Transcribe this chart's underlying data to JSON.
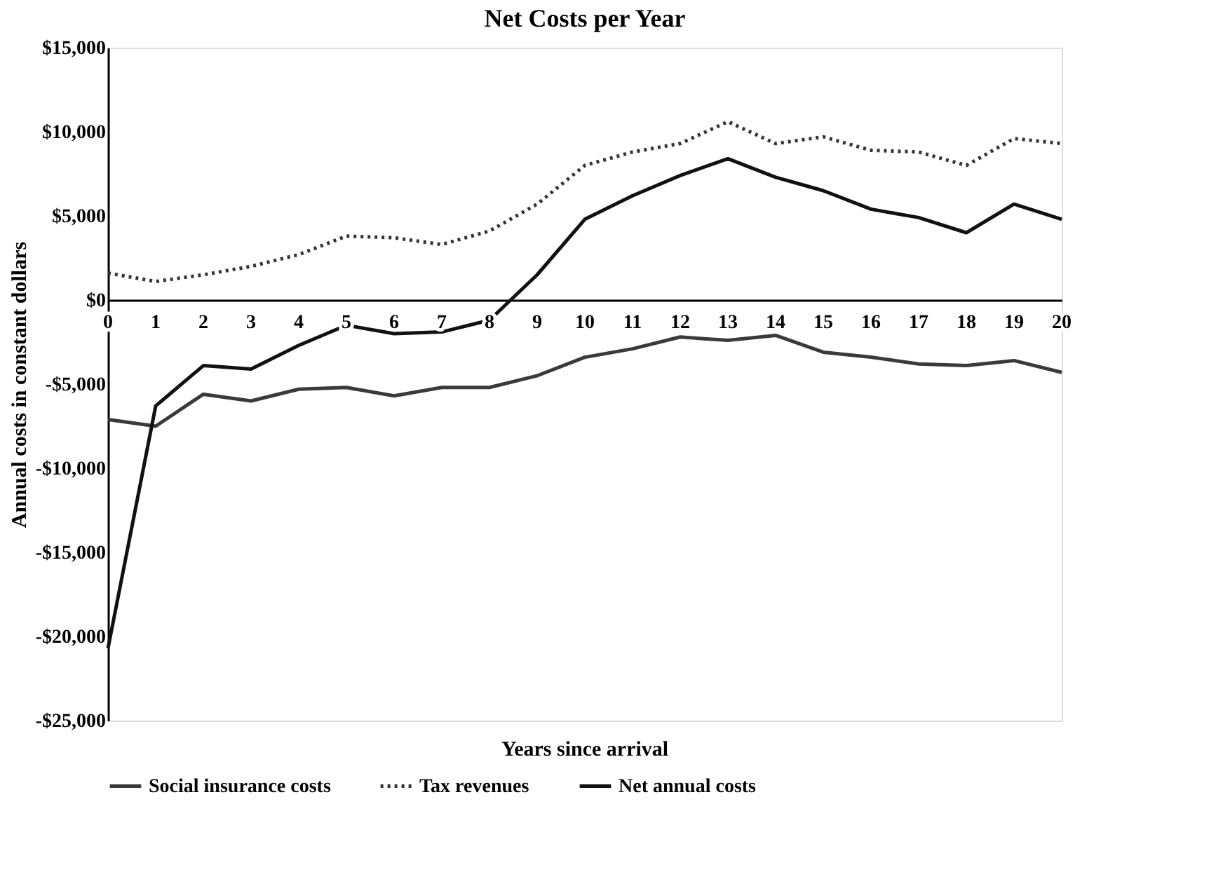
{
  "chart_data": {
    "type": "line",
    "title": "Net Costs per Year",
    "xlabel": "Years since arrival",
    "ylabel": "Annual costs in constant dollars",
    "x": [
      0,
      1,
      2,
      3,
      4,
      5,
      6,
      7,
      8,
      9,
      10,
      11,
      12,
      13,
      14,
      15,
      16,
      17,
      18,
      19,
      20
    ],
    "series": [
      {
        "name": "Social insurance costs",
        "color": "#3a3a3a",
        "line_style": "solid",
        "values": [
          -7100,
          -7500,
          -5600,
          -6000,
          -5300,
          -5200,
          -5700,
          -5200,
          -5200,
          -4500,
          -3400,
          -2900,
          -2200,
          -2400,
          -2100,
          -3100,
          -3400,
          -3800,
          -3900,
          -3600,
          -4300
        ]
      },
      {
        "name": "Tax revenues",
        "color": "#333333",
        "line_style": "dotted",
        "values": [
          1600,
          1100,
          1500,
          2000,
          2700,
          3800,
          3700,
          3300,
          4100,
          5700,
          8000,
          8800,
          9300,
          10600,
          9300,
          9700,
          8900,
          8800,
          8000,
          9600,
          9300
        ]
      },
      {
        "name": "Net annual costs",
        "color": "#111111",
        "line_style": "solid",
        "values": [
          -20700,
          -6300,
          -3900,
          -4100,
          -2700,
          -1500,
          -2000,
          -1900,
          -1200,
          1500,
          4800,
          6200,
          7400,
          8400,
          7300,
          6500,
          5400,
          4900,
          4000,
          5700,
          4800
        ]
      }
    ],
    "xlim": [
      0,
      20
    ],
    "xticks": [
      0,
      1,
      2,
      3,
      4,
      5,
      6,
      7,
      8,
      9,
      10,
      11,
      12,
      13,
      14,
      15,
      16,
      17,
      18,
      19,
      20
    ],
    "ylim": [
      -25000,
      15000
    ],
    "yticks": [
      {
        "value": -25000,
        "label": "-$25,000"
      },
      {
        "value": -20000,
        "label": "-$20,000"
      },
      {
        "value": -15000,
        "label": "-$15,000"
      },
      {
        "value": -10000,
        "label": "-$10,000"
      },
      {
        "value": -5000,
        "label": "-$5,000"
      },
      {
        "value": 0,
        "label": "$0"
      },
      {
        "value": 5000,
        "label": "$5,000"
      },
      {
        "value": 10000,
        "label": "$10,000"
      },
      {
        "value": 15000,
        "label": "$15,000"
      }
    ],
    "grid": false,
    "legend": "bottom",
    "marker": "none"
  }
}
